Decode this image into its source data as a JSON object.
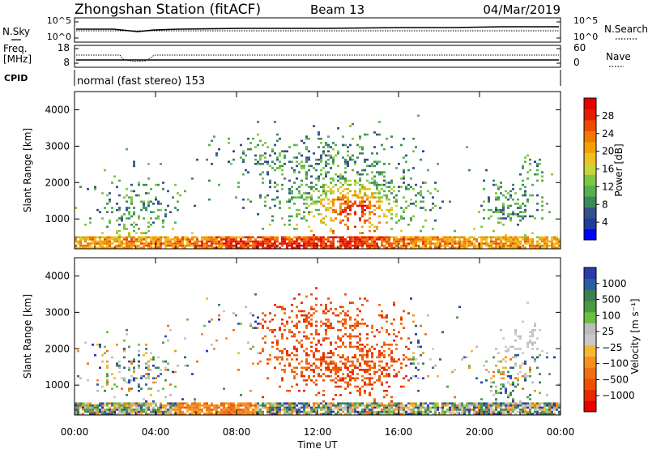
{
  "header": {
    "title": "Zhongshan Station (fitACF)",
    "beam": "Beam 13",
    "date": "04/Mar/2019"
  },
  "top_panels": {
    "nsky_label": "N.Sky",
    "nsearch_label": "N.Search",
    "noise_ticks_left": [
      "10^5",
      "10^0"
    ],
    "noise_ticks_right": [
      "10^5",
      "10^0"
    ],
    "freq_label_1": "Freq.",
    "freq_label_2": "[MHz]",
    "freq_ticks": [
      "18",
      "8"
    ],
    "nave_label": "Nave",
    "nave_ticks": [
      "60",
      "0"
    ],
    "cpid_label": "CPID",
    "cpid_value": "normal (fast stereo) 153"
  },
  "chart_data": [
    {
      "type": "heatmap",
      "name": "power",
      "ylabel": "Slant Range [km]",
      "yticks": [
        "1000",
        "2000",
        "3000",
        "4000"
      ],
      "ylim": [
        180,
        4500
      ],
      "xlim_hours": [
        0,
        24
      ],
      "colorbar": {
        "label": "Power [dB]",
        "ticks": [
          "4",
          "8",
          "12",
          "16",
          "20",
          "24",
          "28"
        ],
        "colors": [
          "#0000ff",
          "#1c3f9c",
          "#35508a",
          "#3b8a5a",
          "#55b14b",
          "#7ec640",
          "#c9d33a",
          "#f0c020",
          "#f5a000",
          "#f07a00",
          "#ee4a00",
          "#e61e00",
          "#e60000"
        ]
      }
    },
    {
      "type": "heatmap",
      "name": "velocity",
      "ylabel": "Slant Range [km]",
      "yticks": [
        "1000",
        "2000",
        "3000",
        "4000"
      ],
      "ylim": [
        180,
        4500
      ],
      "xlim_hours": [
        0,
        24
      ],
      "colorbar": {
        "label": "Velocity [m s⁻¹]",
        "ticks": [
          "1000",
          "500",
          "100",
          "25",
          "−25",
          "−100",
          "−500",
          "−1000"
        ],
        "colors": [
          "#2a3aa8",
          "#2a5ea0",
          "#3a8050",
          "#4a9a40",
          "#6cc040",
          "#bcbcbc",
          "#c8c8c8",
          "#f5b830",
          "#f59020",
          "#f07010",
          "#ee5000",
          "#e62a00",
          "#e60000"
        ]
      }
    }
  ],
  "x_axis": {
    "ticks": [
      "00:00",
      "04:00",
      "08:00",
      "12:00",
      "16:00",
      "20:00",
      "00:00"
    ],
    "label": "Time UT"
  }
}
